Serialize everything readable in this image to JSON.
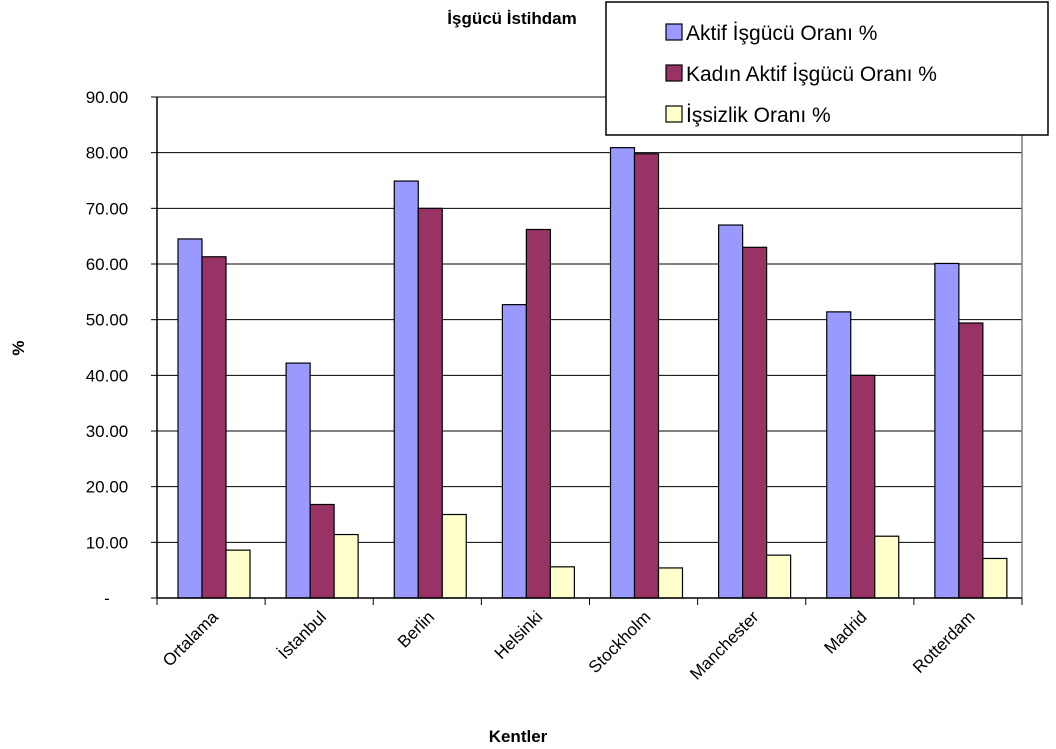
{
  "chart_data": {
    "type": "bar",
    "title": "İşgücü İstihdam",
    "xlabel": "Kentler",
    "ylabel": "%",
    "categories": [
      "Ortalama",
      "İstanbul",
      "Berlin",
      "Helsinki",
      "Stockholm",
      "Manchester",
      "Madrid",
      "Rotterdam"
    ],
    "series": [
      {
        "name": "Aktif İşgücü Oranı %",
        "color": "#9999ff",
        "values": [
          64.5,
          42.2,
          74.9,
          52.7,
          80.9,
          67.0,
          51.4,
          60.1
        ]
      },
      {
        "name": "Kadın Aktif İşgücü Oranı %",
        "color": "#993366",
        "values": [
          61.3,
          16.8,
          70.0,
          66.2,
          79.8,
          63.0,
          40.0,
          49.4
        ]
      },
      {
        "name": "İşsizlik Oranı %",
        "color": "#ffffcc",
        "values": [
          8.6,
          11.4,
          15.0,
          5.6,
          5.4,
          7.7,
          11.1,
          7.1
        ]
      }
    ],
    "ylim": [
      0,
      90
    ],
    "yticks": [
      0,
      10,
      20,
      30,
      40,
      50,
      60,
      70,
      80,
      90
    ],
    "ytick_labels": [
      "-",
      "10.00",
      "20.00",
      "30.00",
      "40.00",
      "50.00",
      "60.00",
      "70.00",
      "80.00",
      "90.00"
    ],
    "grid": true,
    "legend_position": "top-right"
  }
}
